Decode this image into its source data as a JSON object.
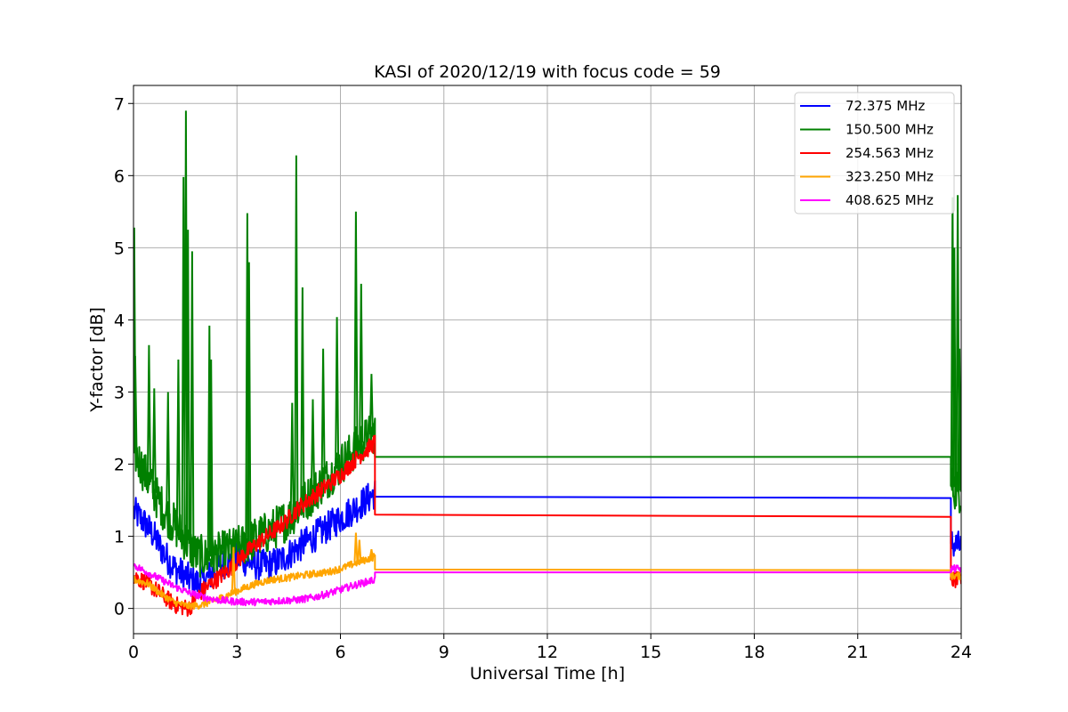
{
  "chart_data": {
    "type": "line",
    "title": "KASI of 2020/12/19 with focus code = 59",
    "xlabel": "Universal Time [h]",
    "ylabel": "Y-factor [dB]",
    "xlim": [
      0,
      24
    ],
    "ylim": [
      -0.35,
      7.25
    ],
    "xticks": [
      0,
      3,
      6,
      9,
      12,
      15,
      18,
      21,
      24
    ],
    "yticks": [
      0,
      1,
      2,
      3,
      4,
      5,
      6,
      7
    ],
    "grid": true,
    "legend_position": "top-right",
    "series": [
      {
        "name": "  72.375 MHz",
        "color": "#0000ff",
        "points": [
          [
            0,
            1.35
          ],
          [
            0.3,
            1.2
          ],
          [
            0.6,
            1.0
          ],
          [
            0.9,
            0.75
          ],
          [
            1.2,
            0.55
          ],
          [
            1.5,
            0.45
          ],
          [
            1.8,
            0.35
          ],
          [
            2.1,
            0.4
          ],
          [
            2.4,
            0.55
          ],
          [
            2.7,
            0.65
          ],
          [
            3.0,
            0.7
          ],
          [
            3.3,
            0.65
          ],
          [
            3.6,
            0.6
          ],
          [
            3.9,
            0.6
          ],
          [
            4.2,
            0.65
          ],
          [
            4.5,
            0.75
          ],
          [
            4.8,
            0.85
          ],
          [
            5.1,
            0.95
          ],
          [
            5.4,
            1.05
          ],
          [
            5.7,
            1.15
          ],
          [
            6.0,
            1.25
          ],
          [
            6.3,
            1.35
          ],
          [
            6.6,
            1.45
          ],
          [
            7.0,
            1.6
          ],
          [
            7.0,
            1.55
          ],
          [
            23.7,
            1.53
          ],
          [
            23.7,
            0.9
          ],
          [
            24,
            0.85
          ]
        ],
        "noise": 0.22
      },
      {
        "name": "150.500 MHz",
        "color": "#008000",
        "points": [
          [
            0,
            2.2
          ],
          [
            0.3,
            1.9
          ],
          [
            0.6,
            1.6
          ],
          [
            0.9,
            1.35
          ],
          [
            1.2,
            1.15
          ],
          [
            1.5,
            0.95
          ],
          [
            1.8,
            0.75
          ],
          [
            2.1,
            0.7
          ],
          [
            2.4,
            0.75
          ],
          [
            2.7,
            0.8
          ],
          [
            3.0,
            0.85
          ],
          [
            3.3,
            0.9
          ],
          [
            3.6,
            1.0
          ],
          [
            3.9,
            1.05
          ],
          [
            4.2,
            1.15
          ],
          [
            4.5,
            1.25
          ],
          [
            4.8,
            1.4
          ],
          [
            5.1,
            1.55
          ],
          [
            5.4,
            1.7
          ],
          [
            5.7,
            1.85
          ],
          [
            6.0,
            2.0
          ],
          [
            6.3,
            2.15
          ],
          [
            6.6,
            2.3
          ],
          [
            7.0,
            2.45
          ],
          [
            7.0,
            2.1
          ],
          [
            23.7,
            2.1
          ],
          [
            23.7,
            1.7
          ],
          [
            24,
            1.6
          ]
        ],
        "noise": 0.3,
        "spikes": [
          [
            0.02,
            5.28
          ],
          [
            0.05,
            3.5
          ],
          [
            0.45,
            3.65
          ],
          [
            0.6,
            3.05
          ],
          [
            1.0,
            3.0
          ],
          [
            1.3,
            3.45
          ],
          [
            1.45,
            5.98
          ],
          [
            1.52,
            6.9
          ],
          [
            1.58,
            5.25
          ],
          [
            1.7,
            4.95
          ],
          [
            2.2,
            3.92
          ],
          [
            2.25,
            3.45
          ],
          [
            3.3,
            5.48
          ],
          [
            3.35,
            4.8
          ],
          [
            4.6,
            2.85
          ],
          [
            4.72,
            6.28
          ],
          [
            4.9,
            4.45
          ],
          [
            5.2,
            2.9
          ],
          [
            5.5,
            3.6
          ],
          [
            5.9,
            4.04
          ],
          [
            6.45,
            5.5
          ],
          [
            6.6,
            4.5
          ],
          [
            6.9,
            3.25
          ],
          [
            23.75,
            5.7
          ],
          [
            23.8,
            5.0
          ],
          [
            23.9,
            5.73
          ],
          [
            23.95,
            3.6
          ]
        ]
      },
      {
        "name": "254.563 MHz",
        "color": "#ff0000",
        "points": [
          [
            0,
            0.45
          ],
          [
            0.4,
            0.35
          ],
          [
            0.8,
            0.2
          ],
          [
            1.2,
            0.05
          ],
          [
            1.6,
            0.0
          ],
          [
            2.0,
            0.25
          ],
          [
            2.4,
            0.4
          ],
          [
            2.8,
            0.55
          ],
          [
            3.2,
            0.75
          ],
          [
            3.6,
            0.9
          ],
          [
            4.0,
            1.05
          ],
          [
            4.4,
            1.2
          ],
          [
            4.8,
            1.4
          ],
          [
            5.2,
            1.55
          ],
          [
            5.6,
            1.7
          ],
          [
            6.0,
            1.85
          ],
          [
            6.4,
            2.05
          ],
          [
            7.0,
            2.3
          ],
          [
            7.0,
            1.3
          ],
          [
            23.7,
            1.27
          ],
          [
            23.7,
            0.4
          ],
          [
            24,
            0.38
          ]
        ],
        "noise": 0.12
      },
      {
        "name": "323.250 MHz",
        "color": "#ffa500",
        "points": [
          [
            0,
            0.4
          ],
          [
            0.4,
            0.35
          ],
          [
            0.8,
            0.2
          ],
          [
            1.2,
            0.08
          ],
          [
            1.6,
            0.03
          ],
          [
            2.0,
            0.05
          ],
          [
            2.4,
            0.12
          ],
          [
            2.8,
            0.2
          ],
          [
            3.2,
            0.28
          ],
          [
            3.6,
            0.35
          ],
          [
            4.0,
            0.4
          ],
          [
            4.4,
            0.42
          ],
          [
            4.8,
            0.45
          ],
          [
            5.2,
            0.48
          ],
          [
            5.6,
            0.5
          ],
          [
            6.0,
            0.55
          ],
          [
            6.4,
            0.62
          ],
          [
            7.0,
            0.72
          ],
          [
            7.0,
            0.54
          ],
          [
            23.7,
            0.53
          ],
          [
            23.7,
            0.45
          ],
          [
            24,
            0.45
          ]
        ],
        "noise": 0.05,
        "spikes": [
          [
            2.9,
            0.85
          ],
          [
            6.45,
            1.05
          ],
          [
            6.55,
            0.95
          ],
          [
            6.9,
            0.82
          ]
        ]
      },
      {
        "name": "408.625 MHz",
        "color": "#ff00ff",
        "points": [
          [
            0,
            0.6
          ],
          [
            0.4,
            0.5
          ],
          [
            0.8,
            0.4
          ],
          [
            1.2,
            0.3
          ],
          [
            1.6,
            0.22
          ],
          [
            2.0,
            0.16
          ],
          [
            2.4,
            0.12
          ],
          [
            2.8,
            0.1
          ],
          [
            3.2,
            0.09
          ],
          [
            3.6,
            0.09
          ],
          [
            4.0,
            0.1
          ],
          [
            4.4,
            0.11
          ],
          [
            4.8,
            0.12
          ],
          [
            5.2,
            0.15
          ],
          [
            5.6,
            0.2
          ],
          [
            6.0,
            0.26
          ],
          [
            6.4,
            0.32
          ],
          [
            7.0,
            0.4
          ],
          [
            7.0,
            0.5
          ],
          [
            23.7,
            0.5
          ],
          [
            23.7,
            0.55
          ],
          [
            24,
            0.55
          ]
        ],
        "noise": 0.05
      }
    ]
  }
}
